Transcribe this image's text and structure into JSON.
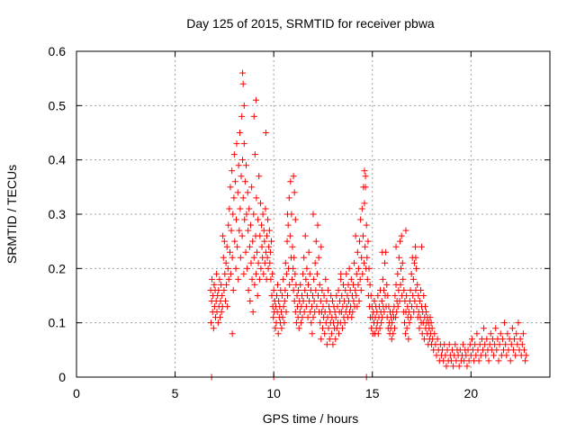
{
  "chart_data": {
    "type": "scatter",
    "title": "Day 125 of 2015, SRMTID for receiver pbwa",
    "xlabel": "GPS time / hours",
    "ylabel": "SRMTID / TECUs",
    "xlim": [
      0,
      24
    ],
    "ylim": [
      0,
      0.6
    ],
    "x_ticks": [
      0,
      5,
      10,
      15,
      20
    ],
    "x_tick_labels": [
      "0",
      "5",
      "10",
      "15",
      "20"
    ],
    "y_ticks": [
      0,
      0.1,
      0.2,
      0.3,
      0.4,
      0.5,
      0.6
    ],
    "y_tick_labels": [
      "0",
      "0.1",
      "0.2",
      "0.3",
      "0.4",
      "0.5",
      "0.6"
    ],
    "grid": true,
    "marker": "+",
    "series": [
      {
        "name": "SRMTID",
        "color": "#ff0000",
        "x": [
          6.8,
          6.82,
          6.85,
          6.87,
          6.9,
          6.92,
          6.95,
          6.98,
          7.0,
          7.03,
          7.05,
          7.08,
          7.1,
          7.12,
          7.15,
          7.18,
          7.2,
          7.22,
          7.25,
          7.28,
          7.3,
          7.33,
          7.35,
          7.38,
          7.4,
          7.42,
          7.45,
          7.48,
          7.5,
          7.52,
          7.55,
          7.58,
          7.6,
          7.63,
          7.65,
          7.68,
          7.7,
          7.72,
          7.75,
          7.78,
          7.8,
          7.82,
          7.85,
          7.88,
          7.9,
          7.93,
          7.95,
          7.98,
          8.0,
          8.02,
          8.05,
          8.08,
          8.1,
          8.12,
          8.15,
          8.18,
          8.2,
          8.22,
          8.25,
          8.28,
          8.3,
          8.32,
          8.35,
          8.38,
          8.4,
          8.42,
          8.45,
          8.48,
          8.5,
          8.52,
          8.55,
          8.58,
          8.6,
          8.62,
          8.65,
          8.68,
          8.7,
          8.72,
          8.75,
          8.78,
          8.8,
          8.83,
          8.85,
          8.88,
          8.9,
          8.93,
          8.95,
          8.98,
          9.0,
          9.03,
          9.05,
          9.08,
          9.1,
          9.12,
          9.15,
          9.18,
          9.2,
          9.22,
          9.25,
          9.28,
          9.3,
          9.33,
          9.35,
          9.38,
          9.4,
          9.43,
          9.45,
          9.48,
          9.5,
          9.53,
          9.55,
          9.58,
          9.6,
          9.63,
          9.65,
          9.68,
          9.7,
          9.72,
          9.75,
          9.78,
          9.8,
          9.83,
          9.85,
          9.88,
          9.9,
          9.93,
          9.95,
          9.98,
          10.0,
          10.03,
          10.05,
          10.08,
          10.1,
          10.13,
          10.15,
          10.18,
          10.2,
          10.23,
          10.25,
          10.28,
          10.3,
          10.33,
          10.35,
          10.38,
          10.4,
          10.43,
          10.45,
          10.48,
          10.5,
          10.53,
          10.55,
          10.58,
          10.6,
          10.63,
          10.65,
          10.68,
          10.7,
          10.73,
          10.75,
          10.78,
          10.8,
          10.83,
          10.85,
          10.88,
          10.9,
          10.93,
          10.95,
          10.98,
          11.0,
          11.03,
          11.05,
          11.08,
          11.1,
          11.13,
          11.15,
          11.18,
          11.2,
          11.23,
          11.25,
          11.28,
          11.3,
          11.33,
          11.35,
          11.38,
          11.4,
          11.43,
          11.45,
          11.48,
          11.5,
          11.53,
          11.55,
          11.58,
          11.6,
          11.63,
          11.65,
          11.68,
          11.7,
          11.73,
          11.75,
          11.78,
          11.8,
          11.83,
          11.85,
          11.88,
          11.9,
          11.93,
          11.95,
          11.98,
          12.0,
          12.03,
          12.05,
          12.08,
          12.1,
          12.13,
          12.15,
          12.18,
          12.2,
          12.23,
          12.25,
          12.28,
          12.3,
          12.33,
          12.35,
          12.38,
          12.4,
          12.43,
          12.45,
          12.48,
          12.5,
          12.53,
          12.55,
          12.58,
          12.6,
          12.63,
          12.65,
          12.68,
          12.7,
          12.73,
          12.75,
          12.78,
          12.8,
          12.83,
          12.85,
          12.88,
          12.9,
          12.93,
          12.95,
          12.98,
          13.0,
          13.03,
          13.05,
          13.08,
          13.1,
          13.13,
          13.15,
          13.18,
          13.2,
          13.23,
          13.25,
          13.28,
          13.3,
          13.33,
          13.35,
          13.38,
          13.4,
          13.43,
          13.45,
          13.48,
          13.5,
          13.53,
          13.55,
          13.58,
          13.6,
          13.63,
          13.65,
          13.68,
          13.7,
          13.73,
          13.75,
          13.78,
          13.8,
          13.83,
          13.85,
          13.88,
          13.9,
          13.93,
          13.95,
          13.98,
          14.0,
          14.03,
          14.05,
          14.08,
          14.1,
          14.13,
          14.15,
          14.18,
          14.2,
          14.23,
          14.25,
          14.28,
          14.3,
          14.33,
          14.35,
          14.38,
          14.4,
          14.43,
          14.45,
          14.48,
          14.5,
          14.53,
          14.55,
          14.58,
          14.6,
          14.63,
          14.65,
          14.68,
          14.7,
          14.73,
          14.75,
          14.78,
          14.8,
          14.83,
          14.85,
          14.88,
          14.9,
          14.93,
          14.95,
          14.98,
          15.0,
          15.03,
          15.05,
          15.08,
          15.1,
          15.13,
          15.15,
          15.18,
          15.2,
          15.23,
          15.25,
          15.28,
          15.3,
          15.33,
          15.35,
          15.38,
          15.4,
          15.43,
          15.45,
          15.48,
          15.5,
          15.53,
          15.55,
          15.58,
          15.6,
          15.63,
          15.65,
          15.68,
          15.7,
          15.73,
          15.75,
          15.78,
          15.8,
          15.83,
          15.85,
          15.88,
          15.9,
          15.93,
          15.95,
          15.98,
          16.0,
          16.03,
          16.05,
          16.08,
          16.1,
          16.13,
          16.15,
          16.18,
          16.2,
          16.23,
          16.25,
          16.28,
          16.3,
          16.33,
          16.35,
          16.38,
          16.4,
          16.43,
          16.45,
          16.48,
          16.5,
          16.53,
          16.55,
          16.58,
          16.6,
          16.63,
          16.65,
          16.68,
          16.7,
          16.73,
          16.75,
          16.78,
          16.8,
          16.83,
          16.85,
          16.88,
          16.9,
          16.93,
          16.95,
          16.98,
          17.0,
          17.03,
          17.05,
          17.08,
          17.1,
          17.13,
          17.15,
          17.18,
          17.2,
          17.23,
          17.25,
          17.28,
          17.3,
          17.33,
          17.35,
          17.38,
          17.4,
          17.43,
          17.45,
          17.48,
          17.5,
          17.53,
          17.55,
          17.58,
          17.6,
          17.63,
          17.65,
          17.68,
          17.7,
          17.73,
          17.75,
          17.78,
          17.8,
          17.83,
          17.85,
          17.88,
          17.9,
          17.93,
          17.95,
          17.98,
          18.0,
          18.03,
          18.05,
          18.1,
          18.15,
          18.2,
          18.25,
          18.3,
          18.35,
          18.4,
          18.45,
          18.5,
          18.55,
          18.6,
          18.65,
          18.7,
          18.75,
          18.8,
          18.85,
          18.9,
          18.95,
          19.0,
          19.05,
          19.1,
          19.15,
          19.2,
          19.25,
          19.3,
          19.35,
          19.4,
          19.45,
          19.5,
          19.55,
          19.6,
          19.65,
          19.7,
          19.75,
          19.8,
          19.85,
          19.9,
          19.95,
          20.0,
          20.05,
          20.1,
          20.15,
          20.2,
          20.25,
          20.3,
          20.35,
          20.4,
          20.45,
          20.5,
          20.55,
          20.6,
          20.65,
          20.7,
          20.75,
          20.8,
          20.85,
          20.9,
          20.95,
          21.0,
          21.05,
          21.1,
          21.15,
          21.2,
          21.25,
          21.3,
          21.35,
          21.4,
          21.45,
          21.5,
          21.55,
          21.6,
          21.65,
          21.7,
          21.75,
          21.8,
          21.85,
          21.9,
          21.95,
          22.0,
          22.05,
          22.1,
          22.15,
          22.2,
          22.25,
          22.3,
          22.35,
          22.4,
          22.45,
          22.5,
          22.55,
          22.6,
          22.65,
          22.7,
          22.75,
          22.8,
          6.85,
          10.0,
          14.7,
          8.42,
          8.45,
          8.5,
          9.0,
          9.1,
          11.0,
          11.05,
          14.6,
          14.65,
          16.2,
          16.7,
          12.0,
          12.4,
          13.4,
          15.5,
          17.2,
          17.5,
          10.7,
          11.1,
          9.6,
          7.9
        ],
        "y": [
          0.16,
          0.1,
          0.14,
          0.18,
          0.12,
          0.15,
          0.09,
          0.17,
          0.13,
          0.16,
          0.11,
          0.14,
          0.19,
          0.12,
          0.15,
          0.1,
          0.16,
          0.13,
          0.18,
          0.11,
          0.14,
          0.17,
          0.12,
          0.15,
          0.13,
          0.26,
          0.22,
          0.16,
          0.25,
          0.19,
          0.14,
          0.21,
          0.17,
          0.24,
          0.13,
          0.2,
          0.28,
          0.18,
          0.31,
          0.23,
          0.35,
          0.19,
          0.27,
          0.38,
          0.22,
          0.3,
          0.16,
          0.33,
          0.41,
          0.25,
          0.36,
          0.2,
          0.29,
          0.43,
          0.24,
          0.34,
          0.18,
          0.39,
          0.27,
          0.45,
          0.31,
          0.22,
          0.37,
          0.48,
          0.26,
          0.4,
          0.33,
          0.19,
          0.43,
          0.29,
          0.36,
          0.23,
          0.39,
          0.3,
          0.2,
          0.34,
          0.27,
          0.16,
          0.31,
          0.24,
          0.14,
          0.28,
          0.21,
          0.35,
          0.18,
          0.25,
          0.12,
          0.3,
          0.22,
          0.17,
          0.41,
          0.26,
          0.19,
          0.33,
          0.23,
          0.15,
          0.29,
          0.21,
          0.37,
          0.18,
          0.26,
          0.32,
          0.2,
          0.28,
          0.24,
          0.22,
          0.3,
          0.19,
          0.27,
          0.25,
          0.21,
          0.31,
          0.23,
          0.18,
          0.26,
          0.22,
          0.29,
          0.2,
          0.24,
          0.27,
          0.21,
          0.23,
          0.18,
          0.25,
          0.15,
          0.19,
          0.13,
          0.11,
          0.16,
          0.12,
          0.14,
          0.09,
          0.13,
          0.1,
          0.15,
          0.12,
          0.17,
          0.08,
          0.14,
          0.11,
          0.13,
          0.1,
          0.16,
          0.12,
          0.09,
          0.15,
          0.11,
          0.18,
          0.13,
          0.1,
          0.14,
          0.16,
          0.21,
          0.12,
          0.19,
          0.25,
          0.15,
          0.28,
          0.2,
          0.33,
          0.17,
          0.26,
          0.36,
          0.22,
          0.3,
          0.18,
          0.24,
          0.2,
          0.16,
          0.22,
          0.14,
          0.19,
          0.12,
          0.17,
          0.1,
          0.15,
          0.13,
          0.11,
          0.16,
          0.09,
          0.14,
          0.12,
          0.17,
          0.1,
          0.13,
          0.15,
          0.11,
          0.19,
          0.14,
          0.22,
          0.12,
          0.16,
          0.26,
          0.18,
          0.13,
          0.2,
          0.15,
          0.11,
          0.17,
          0.23,
          0.14,
          0.19,
          0.12,
          0.16,
          0.1,
          0.13,
          0.08,
          0.15,
          0.11,
          0.18,
          0.14,
          0.12,
          0.21,
          0.16,
          0.25,
          0.13,
          0.19,
          0.28,
          0.15,
          0.22,
          0.12,
          0.17,
          0.1,
          0.14,
          0.07,
          0.12,
          0.16,
          0.09,
          0.13,
          0.11,
          0.15,
          0.08,
          0.12,
          0.18,
          0.1,
          0.14,
          0.06,
          0.11,
          0.16,
          0.09,
          0.13,
          0.07,
          0.12,
          0.1,
          0.15,
          0.08,
          0.11,
          0.14,
          0.06,
          0.1,
          0.13,
          0.09,
          0.12,
          0.07,
          0.11,
          0.15,
          0.09,
          0.13,
          0.1,
          0.16,
          0.08,
          0.12,
          0.14,
          0.1,
          0.18,
          0.12,
          0.15,
          0.09,
          0.13,
          0.17,
          0.11,
          0.14,
          0.1,
          0.16,
          0.12,
          0.19,
          0.13,
          0.15,
          0.11,
          0.17,
          0.14,
          0.2,
          0.12,
          0.16,
          0.13,
          0.18,
          0.11,
          0.15,
          0.12,
          0.17,
          0.14,
          0.21,
          0.13,
          0.16,
          0.26,
          0.15,
          0.19,
          0.13,
          0.23,
          0.17,
          0.2,
          0.14,
          0.25,
          0.18,
          0.29,
          0.16,
          0.22,
          0.31,
          0.19,
          0.26,
          0.35,
          0.21,
          0.32,
          0.24,
          0.37,
          0.2,
          0.28,
          0.22,
          0.18,
          0.25,
          0.15,
          0.2,
          0.13,
          0.17,
          0.11,
          0.15,
          0.09,
          0.13,
          0.11,
          0.08,
          0.12,
          0.1,
          0.14,
          0.08,
          0.11,
          0.13,
          0.09,
          0.12,
          0.1,
          0.15,
          0.08,
          0.11,
          0.13,
          0.09,
          0.16,
          0.12,
          0.1,
          0.14,
          0.11,
          0.18,
          0.13,
          0.16,
          0.12,
          0.21,
          0.15,
          0.23,
          0.13,
          0.17,
          0.11,
          0.15,
          0.09,
          0.13,
          0.1,
          0.08,
          0.12,
          0.09,
          0.11,
          0.07,
          0.1,
          0.12,
          0.08,
          0.11,
          0.13,
          0.09,
          0.15,
          0.11,
          0.17,
          0.12,
          0.14,
          0.19,
          0.13,
          0.16,
          0.22,
          0.14,
          0.25,
          0.17,
          0.2,
          0.26,
          0.15,
          0.21,
          0.18,
          0.12,
          0.16,
          0.1,
          0.14,
          0.08,
          0.12,
          0.15,
          0.09,
          0.13,
          0.11,
          0.07,
          0.12,
          0.1,
          0.14,
          0.16,
          0.11,
          0.19,
          0.13,
          0.22,
          0.15,
          0.18,
          0.12,
          0.21,
          0.14,
          0.24,
          0.16,
          0.2,
          0.13,
          0.17,
          0.11,
          0.15,
          0.12,
          0.09,
          0.14,
          0.11,
          0.16,
          0.1,
          0.13,
          0.08,
          0.12,
          0.1,
          0.15,
          0.07,
          0.11,
          0.13,
          0.09,
          0.12,
          0.1,
          0.08,
          0.11,
          0.06,
          0.1,
          0.09,
          0.07,
          0.11,
          0.08,
          0.1,
          0.06,
          0.09,
          0.07,
          0.05,
          0.08,
          0.06,
          0.04,
          0.07,
          0.05,
          0.03,
          0.06,
          0.04,
          0.05,
          0.03,
          0.06,
          0.04,
          0.02,
          0.05,
          0.03,
          0.06,
          0.04,
          0.03,
          0.05,
          0.02,
          0.04,
          0.06,
          0.03,
          0.05,
          0.04,
          0.02,
          0.05,
          0.03,
          0.04,
          0.06,
          0.03,
          0.05,
          0.04,
          0.02,
          0.05,
          0.03,
          0.06,
          0.04,
          0.07,
          0.05,
          0.03,
          0.06,
          0.04,
          0.08,
          0.05,
          0.03,
          0.06,
          0.04,
          0.07,
          0.05,
          0.09,
          0.06,
          0.04,
          0.07,
          0.05,
          0.03,
          0.06,
          0.08,
          0.05,
          0.07,
          0.04,
          0.06,
          0.09,
          0.05,
          0.07,
          0.03,
          0.06,
          0.08,
          0.04,
          0.07,
          0.05,
          0.1,
          0.06,
          0.04,
          0.08,
          0.05,
          0.07,
          0.03,
          0.06,
          0.09,
          0.05,
          0.07,
          0.04,
          0.08,
          0.06,
          0.1,
          0.05,
          0.07,
          0.04,
          0.06,
          0.08,
          0.05,
          0.03,
          0.04,
          0.0,
          0.0,
          0.0,
          0.56,
          0.54,
          0.5,
          0.48,
          0.51,
          0.37,
          0.34,
          0.38,
          0.35,
          0.24,
          0.27,
          0.3,
          0.24,
          0.19,
          0.23,
          0.22,
          0.24,
          0.3,
          0.29,
          0.45,
          0.08
        ]
      }
    ]
  }
}
